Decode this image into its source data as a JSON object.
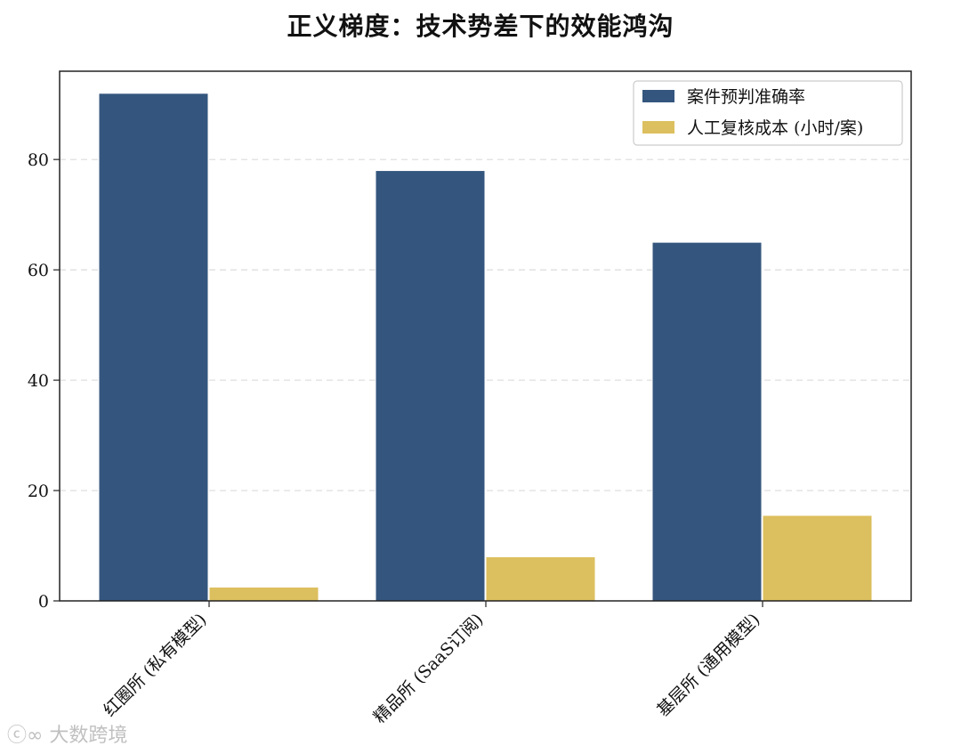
{
  "chart_data": {
    "type": "bar",
    "title": "正义梯度：技术势差下的效能鸿沟",
    "categories": [
      "红圈所 (私有模型)",
      "精品所 (SaaS订阅)",
      "基层所 (通用模型)"
    ],
    "series": [
      {
        "name": "案件预判准确率",
        "color": "#34567e",
        "values": [
          92,
          78,
          65
        ]
      },
      {
        "name": "人工复核成本 (小时/案)",
        "color": "#dcbf5e",
        "values": [
          2.5,
          8,
          15.5
        ]
      }
    ],
    "yticks": [
      0,
      20,
      40,
      60,
      80
    ],
    "ylim": [
      0,
      96
    ],
    "grid": "horizontal dashed",
    "legend_position": "upper right",
    "xlabel": "",
    "ylabel": ""
  },
  "watermark": {
    "text": "大数跨境"
  }
}
